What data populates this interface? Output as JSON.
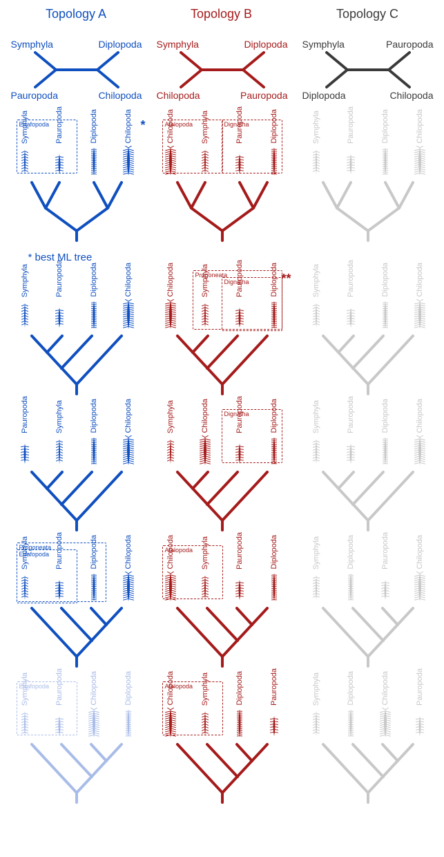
{
  "colors": {
    "blue": "#0f4fbf",
    "blue_faded": "#a9bce8",
    "red": "#a51b1b",
    "grey": "#3a3a3a",
    "grey_faded": "#c8c8c8"
  },
  "headers": {
    "a": "Topology A",
    "b": "Topology B",
    "c": "Topology C"
  },
  "unrooted": {
    "a": {
      "tl": "Symphyla",
      "tr": "Diplopoda",
      "bl": "Pauropoda",
      "br": "Chilopoda"
    },
    "b": {
      "tl": "Symphyla",
      "tr": "Diplopoda",
      "bl": "Chilopoda",
      "br": "Pauropoda"
    },
    "c": {
      "tl": "Symphyla",
      "tr": "Pauropoda",
      "bl": "Diplopoda",
      "br": "Chilopoda"
    }
  },
  "footnotes": {
    "best_ml": "* best ML tree"
  },
  "taxa": {
    "symphyla": "Symphyla",
    "pauropoda": "Pauropoda",
    "diplopoda": "Diplopoda",
    "chilopoda": "Chilopoda"
  },
  "groups": {
    "edafopoda": "Edafopoda",
    "atelopoda": "Atelopoda",
    "dignatha": "Dignatha",
    "progoneata": "Progoneata"
  },
  "line_width": 4,
  "label_fontsize": 11,
  "header_fontsize": 18,
  "rows": [
    {
      "type": "balanced",
      "a": {
        "order": [
          "symphyla",
          "pauropoda",
          "diplopoda",
          "chilopoda"
        ],
        "faded": false,
        "boxes": [
          {
            "g": "edafopoda",
            "span": [
              0,
              1
            ]
          }
        ],
        "star": "*"
      },
      "b": {
        "order": [
          "chilopoda",
          "symphyla",
          "pauropoda",
          "diplopoda"
        ],
        "faded": false,
        "boxes": [
          {
            "g": "atelopoda",
            "span": [
              0,
              1
            ]
          },
          {
            "g": "dignatha",
            "span": [
              2,
              3
            ]
          }
        ]
      },
      "c": {
        "order": [],
        "faded": true
      }
    },
    {
      "type": "comb_left",
      "a": {
        "order": [
          "symphyla",
          "pauropoda",
          "diplopoda",
          "chilopoda"
        ],
        "faded": false,
        "boxes": []
      },
      "b": {
        "order": [
          "chilopoda",
          "symphyla",
          "pauropoda",
          "diplopoda"
        ],
        "faded": false,
        "boxes": [
          {
            "g": "progoneata",
            "span": [
              1,
              3
            ]
          },
          {
            "g": "dignatha",
            "span": [
              2,
              3
            ]
          }
        ],
        "star": "**"
      },
      "c": {
        "order": [],
        "faded": true
      }
    },
    {
      "type": "comb_left",
      "a": {
        "order": [
          "pauropoda",
          "symphyla",
          "diplopoda",
          "chilopoda"
        ],
        "faded": false,
        "boxes": []
      },
      "b": {
        "order": [
          "symphyla",
          "chilopoda",
          "pauropoda",
          "diplopoda"
        ],
        "faded": false,
        "boxes": [
          {
            "g": "dignatha",
            "span": [
              2,
              3
            ]
          }
        ]
      },
      "c": {
        "order": [],
        "faded": true
      }
    },
    {
      "type": "comb_right",
      "a": {
        "order": [
          "symphyla",
          "pauropoda",
          "diplopoda",
          "chilopoda"
        ],
        "faded": false,
        "boxes": [
          {
            "g": "progoneata",
            "span": [
              0,
              2
            ]
          },
          {
            "g": "edafopoda",
            "span": [
              0,
              1
            ]
          }
        ]
      },
      "b": {
        "order": [
          "chilopoda",
          "symphyla",
          "pauropoda",
          "diplopoda"
        ],
        "faded": false,
        "boxes": [
          {
            "g": "atelopoda",
            "span": [
              0,
              1
            ]
          }
        ]
      },
      "c": {
        "order": [
          "symphyla",
          "diplopoda",
          "pauropoda",
          "chilopoda"
        ],
        "faded": true
      }
    },
    {
      "type": "comb_right",
      "a": {
        "order": [
          "symphyla",
          "pauropoda",
          "chilopoda",
          "diplopoda"
        ],
        "faded": true,
        "boxes": [
          {
            "g": "edafopoda",
            "span": [
              0,
              1
            ]
          }
        ]
      },
      "b": {
        "order": [
          "chilopoda",
          "symphyla",
          "diplopoda",
          "pauropoda"
        ],
        "faded": false,
        "boxes": [
          {
            "g": "atelopoda",
            "span": [
              0,
              1
            ]
          }
        ]
      },
      "c": {
        "order": [
          "symphyla",
          "diplopoda",
          "chilopoda",
          "pauropoda"
        ],
        "faded": true
      }
    }
  ]
}
